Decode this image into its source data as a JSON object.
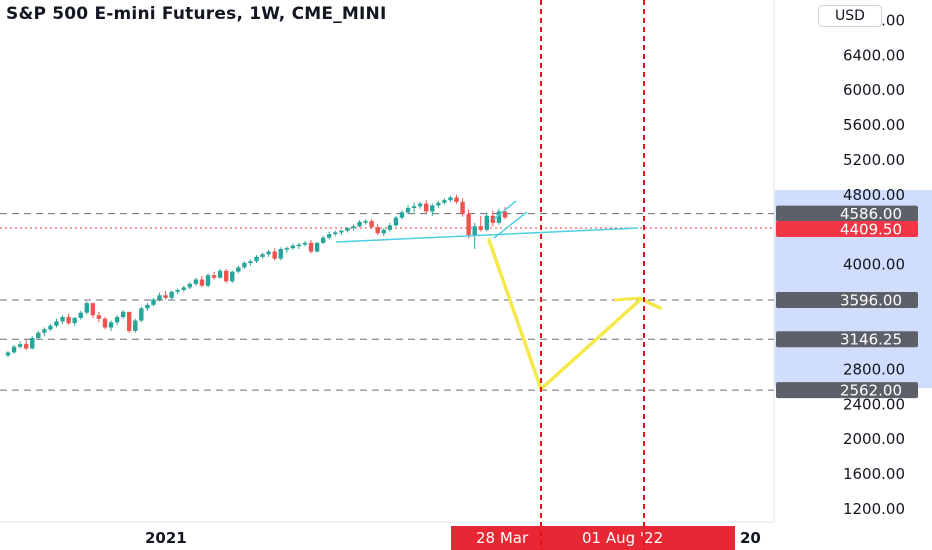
{
  "header": {
    "title": "S&P 500 E-mini Futures, 1W, CME_MINI",
    "currency_button": "USD"
  },
  "chart_data": {
    "type": "candlestick",
    "ylim": [
      1000,
      6900
    ],
    "y_ticks": [
      {
        "value": 1200,
        "label": "1200.00"
      },
      {
        "value": 1600,
        "label": "1600.00"
      },
      {
        "value": 2000,
        "label": "2000.00"
      },
      {
        "value": 2400,
        "label": "2400.00"
      },
      {
        "value": 2800,
        "label": "2800.00"
      },
      {
        "value": 4000,
        "label": "4000.00"
      },
      {
        "value": 4800,
        "label": "4800.00"
      },
      {
        "value": 5200,
        "label": "5200.00"
      },
      {
        "value": 5600,
        "label": "5600.00"
      },
      {
        "value": 6000,
        "label": "6000.00"
      },
      {
        "value": 6400,
        "label": "6400.00"
      },
      {
        "value": 6800,
        "label": "6800.00"
      }
    ],
    "price_labels": [
      {
        "value": 4586,
        "label": "4586.00",
        "color": "#5d6068"
      },
      {
        "value": 4409.5,
        "label": "4409.50",
        "color": "#f23645"
      },
      {
        "value": 3596,
        "label": "3596.00",
        "color": "#5d6068"
      },
      {
        "value": 3146.25,
        "label": "3146.25",
        "color": "#5d6068"
      },
      {
        "value": 2562,
        "label": "2562.00",
        "color": "#5d6068"
      }
    ],
    "horizontal_levels": [
      4586,
      3596,
      3146.25,
      2562
    ],
    "current_price": 4409.5,
    "x_ticks": [
      {
        "label": "2021"
      },
      {
        "label": "20"
      }
    ],
    "date_labels": [
      "28 Mar",
      "01 Aug '22"
    ],
    "colors": {
      "up": "#26a69a",
      "down": "#ef5350",
      "projection": "#f5e84a",
      "trendline": "#4dd0e1",
      "marker": "#e5101f",
      "highlight": "#c6d4fb"
    },
    "candles": [
      [
        2960,
        3010,
        2940,
        2995
      ],
      [
        2995,
        3080,
        2980,
        3060
      ],
      [
        3060,
        3120,
        3040,
        3090
      ],
      [
        3090,
        3140,
        3020,
        3040
      ],
      [
        3040,
        3180,
        3030,
        3160
      ],
      [
        3160,
        3240,
        3140,
        3220
      ],
      [
        3220,
        3280,
        3180,
        3260
      ],
      [
        3260,
        3320,
        3240,
        3300
      ],
      [
        3300,
        3380,
        3280,
        3350
      ],
      [
        3350,
        3420,
        3320,
        3400
      ],
      [
        3400,
        3440,
        3310,
        3330
      ],
      [
        3330,
        3400,
        3300,
        3390
      ],
      [
        3390,
        3470,
        3370,
        3450
      ],
      [
        3450,
        3580,
        3430,
        3560
      ],
      [
        3560,
        3510,
        3390,
        3420
      ],
      [
        3420,
        3460,
        3340,
        3380
      ],
      [
        3380,
        3400,
        3260,
        3280
      ],
      [
        3280,
        3360,
        3240,
        3340
      ],
      [
        3340,
        3420,
        3310,
        3400
      ],
      [
        3400,
        3480,
        3380,
        3460
      ],
      [
        3460,
        3420,
        3220,
        3240
      ],
      [
        3240,
        3380,
        3220,
        3360
      ],
      [
        3360,
        3520,
        3340,
        3500
      ],
      [
        3500,
        3560,
        3470,
        3540
      ],
      [
        3540,
        3620,
        3520,
        3600
      ],
      [
        3600,
        3680,
        3580,
        3650
      ],
      [
        3650,
        3700,
        3600,
        3620
      ],
      [
        3620,
        3700,
        3600,
        3690
      ],
      [
        3690,
        3730,
        3660,
        3710
      ],
      [
        3710,
        3760,
        3690,
        3740
      ],
      [
        3740,
        3800,
        3720,
        3780
      ],
      [
        3780,
        3850,
        3760,
        3830
      ],
      [
        3830,
        3870,
        3740,
        3760
      ],
      [
        3760,
        3900,
        3740,
        3880
      ],
      [
        3880,
        3920,
        3830,
        3850
      ],
      [
        3850,
        3950,
        3840,
        3930
      ],
      [
        3930,
        3950,
        3790,
        3810
      ],
      [
        3810,
        3930,
        3790,
        3920
      ],
      [
        3920,
        3990,
        3900,
        3970
      ],
      [
        3970,
        4040,
        3950,
        4020
      ],
      [
        4020,
        4060,
        3990,
        4040
      ],
      [
        4040,
        4110,
        4020,
        4090
      ],
      [
        4090,
        4140,
        4070,
        4120
      ],
      [
        4120,
        4170,
        4090,
        4150
      ],
      [
        4150,
        4190,
        4050,
        4070
      ],
      [
        4070,
        4200,
        4050,
        4180
      ],
      [
        4180,
        4210,
        4140,
        4190
      ],
      [
        4190,
        4240,
        4170,
        4220
      ],
      [
        4220,
        4250,
        4180,
        4230
      ],
      [
        4230,
        4270,
        4210,
        4250
      ],
      [
        4250,
        4280,
        4130,
        4150
      ],
      [
        4150,
        4260,
        4140,
        4250
      ],
      [
        4250,
        4330,
        4240,
        4310
      ],
      [
        4310,
        4380,
        4290,
        4350
      ],
      [
        4350,
        4390,
        4330,
        4370
      ],
      [
        4370,
        4400,
        4340,
        4390
      ],
      [
        4390,
        4430,
        4370,
        4420
      ],
      [
        4420,
        4460,
        4390,
        4440
      ],
      [
        4440,
        4510,
        4430,
        4490
      ],
      [
        4490,
        4520,
        4460,
        4500
      ],
      [
        4500,
        4520,
        4410,
        4430
      ],
      [
        4430,
        4470,
        4340,
        4360
      ],
      [
        4360,
        4420,
        4330,
        4400
      ],
      [
        4400,
        4480,
        4380,
        4450
      ],
      [
        4450,
        4560,
        4440,
        4540
      ],
      [
        4540,
        4620,
        4520,
        4600
      ],
      [
        4600,
        4680,
        4580,
        4650
      ],
      [
        4650,
        4710,
        4600,
        4670
      ],
      [
        4670,
        4720,
        4640,
        4700
      ],
      [
        4700,
        4740,
        4590,
        4610
      ],
      [
        4610,
        4700,
        4560,
        4680
      ],
      [
        4680,
        4730,
        4650,
        4710
      ],
      [
        4710,
        4760,
        4690,
        4740
      ],
      [
        4740,
        4790,
        4720,
        4770
      ],
      [
        4770,
        4800,
        4700,
        4720
      ],
      [
        4720,
        4760,
        4550,
        4580
      ],
      [
        4580,
        4630,
        4300,
        4340
      ],
      [
        4340,
        4480,
        4180,
        4440
      ],
      [
        4440,
        4560,
        4380,
        4400
      ],
      [
        4400,
        4600,
        4380,
        4560
      ],
      [
        4560,
        4620,
        4440,
        4480
      ],
      [
        4480,
        4640,
        4460,
        4610
      ],
      [
        4610,
        4660,
        4520,
        4540
      ]
    ]
  }
}
